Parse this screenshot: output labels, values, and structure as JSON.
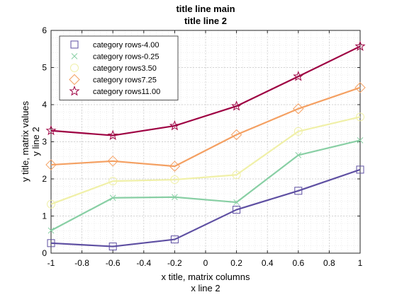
{
  "chart_data": {
    "type": "line",
    "title": [
      "title line main",
      "title line 2"
    ],
    "xlabel": [
      "x title, matrix columns",
      "x line 2"
    ],
    "ylabel": [
      "y title, matrix values",
      "y line 2"
    ],
    "xlim": [
      -1,
      1
    ],
    "ylim": [
      0,
      6
    ],
    "xticks": [
      -1,
      -0.8,
      -0.6,
      -0.4,
      -0.2,
      0,
      0.2,
      0.4,
      0.6,
      0.8,
      1
    ],
    "xtick_labels": [
      "-1",
      "-0.8",
      "-0.6",
      "-0.4",
      "-0.2",
      "0",
      "0.2",
      "0.4",
      "0.6",
      "0.8",
      "1"
    ],
    "yticks": [
      0,
      1,
      2,
      3,
      4,
      5,
      6
    ],
    "ytick_labels": [
      "0",
      "1",
      "2",
      "3",
      "4",
      "5",
      "6"
    ],
    "grid": true,
    "minor_grid": true,
    "legend_position": "top-left",
    "x": [
      -1,
      -0.6,
      -0.2,
      0.2,
      0.6,
      1
    ],
    "series": [
      {
        "name": "category rows-4.00",
        "color": "#5e4fa2",
        "marker": "square",
        "values": [
          0.27,
          0.18,
          0.37,
          1.17,
          1.68,
          2.25
        ]
      },
      {
        "name": "category rows-0.25",
        "color": "#88cfa4",
        "marker": "x",
        "values": [
          0.61,
          1.49,
          1.51,
          1.37,
          2.64,
          3.04
        ]
      },
      {
        "name": "category rows3.50",
        "color": "#f0f0a8",
        "marker": "circle",
        "values": [
          1.32,
          1.94,
          1.98,
          2.11,
          3.28,
          3.67
        ]
      },
      {
        "name": "category rows7.25",
        "color": "#f4a062",
        "marker": "diamond",
        "values": [
          2.38,
          2.48,
          2.34,
          3.19,
          3.89,
          4.46
        ]
      },
      {
        "name": "category rows11.00",
        "color": "#9e0142",
        "marker": "pentagram",
        "values": [
          3.3,
          3.17,
          3.43,
          3.96,
          4.76,
          5.57
        ]
      }
    ]
  }
}
